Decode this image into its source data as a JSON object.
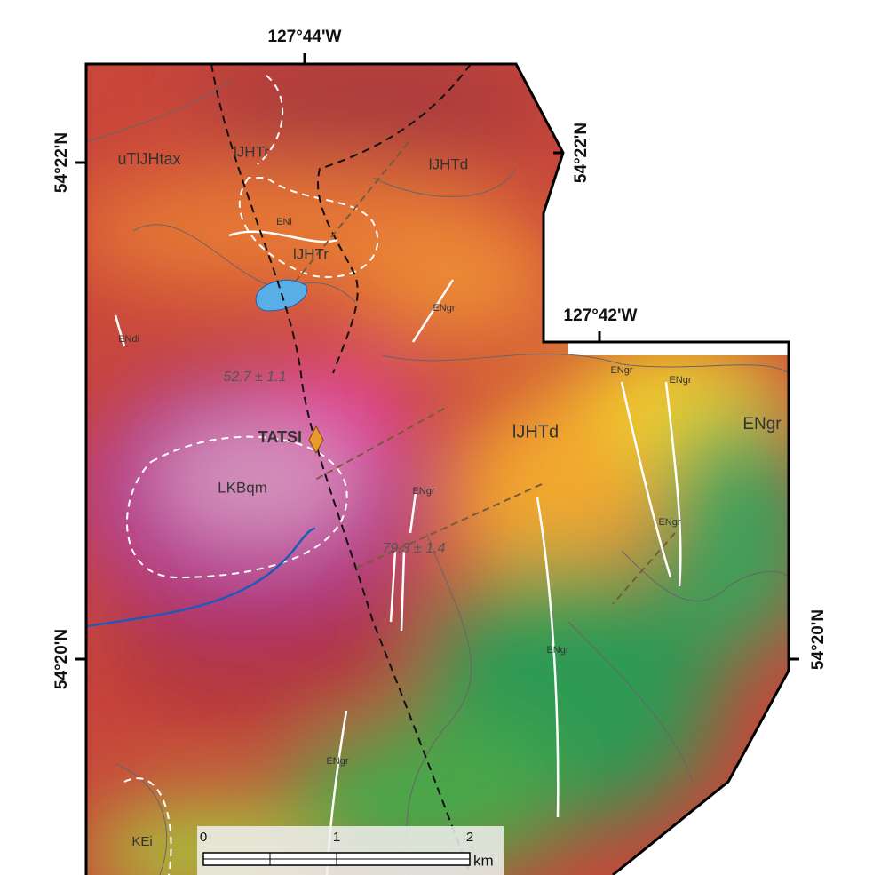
{
  "coordinates": {
    "top_longitude": "127°44'W",
    "inner_longitude": "127°42'W",
    "left_lat_north": "54°22'N",
    "right_lat_north": "54°22'N",
    "left_lat_south": "54°20'N",
    "right_lat_south": "54°20'N"
  },
  "map_units": [
    "uTlJHtax",
    "lJHTr",
    "lJHTd",
    "ENi",
    "lJHTr",
    "ENdi",
    "LKBqm",
    "lJHTd",
    "KEi",
    "ENgr",
    "ENgr",
    "ENgr",
    "ENgr",
    "ENgr",
    "ENgr",
    "ENgr",
    "ENgr"
  ],
  "ages": [
    "52.7 ± 1.1",
    "79.3 ± 1.4"
  ],
  "deposit": "TATSI",
  "scale_bar": {
    "ticks": [
      0,
      1,
      2
    ],
    "unit": "km"
  }
}
